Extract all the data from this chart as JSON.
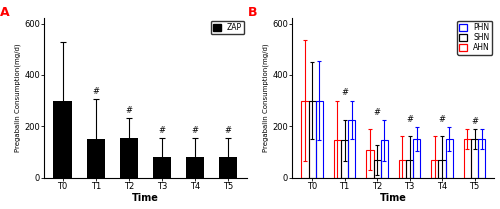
{
  "panel_A": {
    "label": "A",
    "categories": [
      "T0",
      "T1",
      "T2",
      "T3",
      "T4",
      "T5"
    ],
    "values": [
      300,
      150,
      155,
      78,
      78,
      78
    ],
    "errors": [
      230,
      155,
      75,
      75,
      75,
      75
    ],
    "bar_color": "#000000",
    "legend_label": "ZAP",
    "hash_positions": [
      1,
      2,
      3,
      4,
      5
    ],
    "ylabel": "Pregabalin Consumption(mg/d)",
    "xlabel": "Time",
    "ylim": [
      0,
      620
    ],
    "yticks": [
      0,
      200,
      400,
      600
    ]
  },
  "panel_B": {
    "label": "B",
    "categories": [
      "T0",
      "T1",
      "T2",
      "T3",
      "T4",
      "T5"
    ],
    "PHN_values": [
      300,
      225,
      145,
      150,
      150,
      150
    ],
    "PHN_errors": [
      155,
      75,
      80,
      45,
      45,
      40
    ],
    "SHN_values": [
      300,
      145,
      68,
      68,
      68,
      150
    ],
    "SHN_errors": [
      150,
      80,
      60,
      95,
      95,
      40
    ],
    "AHN_values": [
      300,
      145,
      108,
      68,
      68,
      150
    ],
    "AHN_errors": [
      235,
      155,
      80,
      95,
      95,
      40
    ],
    "PHN_color": "#0000ff",
    "SHN_color": "#000000",
    "AHN_color": "#ff0000",
    "hash_positions": [
      1,
      2,
      3,
      4,
      5
    ],
    "ylabel": "Pregabalin Consumption(mg/d)",
    "xlabel": "Time",
    "ylim": [
      0,
      620
    ],
    "yticks": [
      0,
      200,
      400,
      600
    ]
  },
  "figure_bg": "#ffffff",
  "fig_width": 5.0,
  "fig_height": 2.09,
  "dpi": 100
}
